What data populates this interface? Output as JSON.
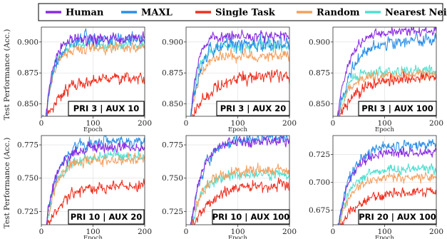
{
  "legend": [
    {
      "name": "Human",
      "color": "#8a2be2"
    },
    {
      "name": "MAXL",
      "color": "#2b8fe8"
    },
    {
      "name": "Single Task",
      "color": "#f03020"
    },
    {
      "name": "Random",
      "color": "#f5a060"
    },
    {
      "name": "Nearest Neighbour",
      "color": "#4fe0d0"
    }
  ],
  "chart_data": [
    {
      "type": "line",
      "tag": "PRI 3 | AUX 10",
      "xlabel": "Epoch",
      "ylabel": "Test Performance (Acc.)",
      "xlim": [
        0,
        200
      ],
      "ylim": [
        0.84,
        0.912
      ],
      "xticks": [
        0,
        100,
        200
      ],
      "yticks": [
        0.85,
        0.875,
        0.9
      ],
      "ytick_labels": [
        "0.850",
        "0.875",
        "0.900"
      ],
      "series": [
        {
          "name": "Human",
          "start": 0.835,
          "final": 0.903,
          "tau": 14,
          "noise": 0.0028
        },
        {
          "name": "MAXL",
          "start": 0.835,
          "final": 0.903,
          "tau": 17,
          "noise": 0.0032
        },
        {
          "name": "Single Task",
          "start": 0.835,
          "final": 0.871,
          "tau": 32,
          "noise": 0.0032
        },
        {
          "name": "Random",
          "start": 0.835,
          "final": 0.896,
          "tau": 15,
          "noise": 0.0028
        },
        {
          "name": "Nearest Neighbour",
          "start": 0.835,
          "final": 0.897,
          "tau": 14,
          "noise": 0.003
        }
      ]
    },
    {
      "type": "line",
      "tag": "PRI 3 | AUX 20",
      "xlabel": "Epoch",
      "ylabel": "",
      "xlim": [
        0,
        200
      ],
      "ylim": [
        0.84,
        0.912
      ],
      "xticks": [
        0,
        100,
        200
      ],
      "yticks": [
        0.85,
        0.875,
        0.9
      ],
      "ytick_labels": [
        "0.850",
        "0.875",
        "0.900"
      ],
      "series": [
        {
          "name": "Human",
          "start": 0.835,
          "final": 0.905,
          "tau": 13,
          "noise": 0.0026
        },
        {
          "name": "MAXL",
          "start": 0.835,
          "final": 0.899,
          "tau": 18,
          "noise": 0.004
        },
        {
          "name": "Single Task",
          "start": 0.835,
          "final": 0.872,
          "tau": 35,
          "noise": 0.0032
        },
        {
          "name": "Random",
          "start": 0.835,
          "final": 0.889,
          "tau": 16,
          "noise": 0.003
        },
        {
          "name": "Nearest Neighbour",
          "start": 0.835,
          "final": 0.897,
          "tau": 15,
          "noise": 0.003
        }
      ]
    },
    {
      "type": "line",
      "tag": "PRI 3 | AUX 100",
      "xlabel": "Epoch",
      "ylabel": "",
      "xlim": [
        0,
        200
      ],
      "ylim": [
        0.84,
        0.912
      ],
      "xticks": [
        0,
        100,
        200
      ],
      "yticks": [
        0.85,
        0.875,
        0.9
      ],
      "ytick_labels": [
        "0.850",
        "0.875",
        "0.900"
      ],
      "series": [
        {
          "name": "Human",
          "start": 0.835,
          "final": 0.909,
          "tau": 22,
          "noise": 0.0024
        },
        {
          "name": "MAXL",
          "start": 0.835,
          "final": 0.901,
          "tau": 28,
          "noise": 0.003
        },
        {
          "name": "Single Task",
          "start": 0.835,
          "final": 0.871,
          "tau": 35,
          "noise": 0.003
        },
        {
          "name": "Random",
          "start": 0.835,
          "final": 0.873,
          "tau": 20,
          "noise": 0.0028
        },
        {
          "name": "Nearest Neighbour",
          "start": 0.835,
          "final": 0.877,
          "tau": 19,
          "noise": 0.0028
        }
      ]
    },
    {
      "type": "line",
      "tag": "PRI 10 | AUX 20",
      "xlabel": "Epoch",
      "ylabel": "Test Performance (Acc.)",
      "xlim": [
        0,
        200
      ],
      "ylim": [
        0.715,
        0.782
      ],
      "xticks": [
        0,
        100,
        200
      ],
      "yticks": [
        0.725,
        0.75,
        0.775
      ],
      "ytick_labels": [
        "0.725",
        "0.750",
        "0.775"
      ],
      "series": [
        {
          "name": "Human",
          "start": 0.71,
          "final": 0.773,
          "tau": 20,
          "noise": 0.0028
        },
        {
          "name": "MAXL",
          "start": 0.71,
          "final": 0.778,
          "tau": 22,
          "noise": 0.003
        },
        {
          "name": "Single Task",
          "start": 0.71,
          "final": 0.745,
          "tau": 35,
          "noise": 0.0028
        },
        {
          "name": "Random",
          "start": 0.71,
          "final": 0.764,
          "tau": 20,
          "noise": 0.0028
        },
        {
          "name": "Nearest Neighbour",
          "start": 0.71,
          "final": 0.766,
          "tau": 20,
          "noise": 0.0028
        }
      ]
    },
    {
      "type": "line",
      "tag": "PRI 10 | AUX 100",
      "xlabel": "Epoch",
      "ylabel": "",
      "xlim": [
        0,
        200
      ],
      "ylim": [
        0.715,
        0.782
      ],
      "xticks": [
        0,
        100,
        200
      ],
      "yticks": [
        0.725,
        0.75,
        0.775
      ],
      "ytick_labels": [
        "0.725",
        "0.750",
        "0.775"
      ],
      "series": [
        {
          "name": "Human",
          "start": 0.71,
          "final": 0.778,
          "tau": 22,
          "noise": 0.0026
        },
        {
          "name": "MAXL",
          "start": 0.71,
          "final": 0.78,
          "tau": 24,
          "noise": 0.0028
        },
        {
          "name": "Single Task",
          "start": 0.71,
          "final": 0.745,
          "tau": 38,
          "noise": 0.0028
        },
        {
          "name": "Random",
          "start": 0.71,
          "final": 0.756,
          "tau": 22,
          "noise": 0.0026
        },
        {
          "name": "Nearest Neighbour",
          "start": 0.71,
          "final": 0.753,
          "tau": 22,
          "noise": 0.0026
        }
      ]
    },
    {
      "type": "line",
      "tag": "PRI 20 | AUX 100",
      "xlabel": "Epoch",
      "ylabel": "",
      "xlim": [
        0,
        200
      ],
      "ylim": [
        0.662,
        0.742
      ],
      "xticks": [
        0,
        100,
        200
      ],
      "yticks": [
        0.675,
        0.7,
        0.725
      ],
      "ytick_labels": [
        "0.675",
        "0.700",
        "0.725"
      ],
      "series": [
        {
          "name": "Human",
          "start": 0.655,
          "final": 0.727,
          "tau": 24,
          "noise": 0.0028
        },
        {
          "name": "MAXL",
          "start": 0.655,
          "final": 0.734,
          "tau": 26,
          "noise": 0.0032
        },
        {
          "name": "Single Task",
          "start": 0.655,
          "final": 0.692,
          "tau": 38,
          "noise": 0.0028
        },
        {
          "name": "Random",
          "start": 0.655,
          "final": 0.705,
          "tau": 24,
          "noise": 0.0028
        },
        {
          "name": "Nearest Neighbour",
          "start": 0.655,
          "final": 0.712,
          "tau": 24,
          "noise": 0.0028
        }
      ]
    }
  ]
}
